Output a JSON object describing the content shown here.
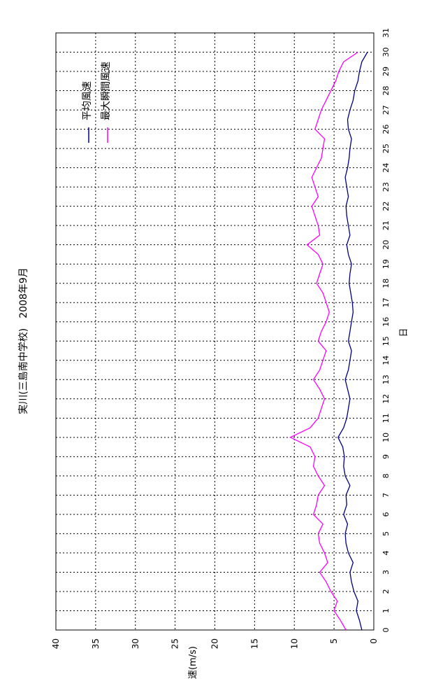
{
  "chart_data": {
    "type": "line",
    "title": "実川(三島南中学校)　2008年9月",
    "xlabel": "日",
    "ylabel": "風速(m/s)",
    "xlim": [
      0,
      31
    ],
    "ylim": [
      0,
      40
    ],
    "x_ticks": [
      "0",
      "1",
      "2",
      "3",
      "4",
      "5",
      "6",
      "7",
      "8",
      "9",
      "10",
      "11",
      "12",
      "13",
      "14",
      "15",
      "16",
      "17",
      "18",
      "19",
      "20",
      "21",
      "22",
      "23",
      "24",
      "25",
      "26",
      "27",
      "28",
      "29",
      "30",
      "31"
    ],
    "y_ticks": [
      "0",
      "5",
      "10",
      "15",
      "20",
      "25",
      "30",
      "35",
      "40"
    ],
    "grid": true,
    "orientation": "rotated 90 degrees counter-clockwise",
    "legend_position": "top-right",
    "series": [
      {
        "name": "平均風速",
        "color": "#000080",
        "x": [
          0,
          0.5,
          1,
          1.5,
          2,
          2.5,
          3,
          3.5,
          4,
          4.5,
          5,
          5.5,
          6,
          6.5,
          7,
          7.5,
          8,
          8.5,
          9,
          9.5,
          10,
          10.5,
          11,
          11.5,
          12,
          12.5,
          13,
          13.5,
          14,
          14.5,
          15,
          15.5,
          16,
          16.5,
          17,
          17.5,
          18,
          18.5,
          19,
          19.5,
          20,
          20.5,
          21,
          21.5,
          22,
          22.5,
          23,
          23.5,
          24,
          24.5,
          25,
          25.5,
          26,
          26.5,
          27,
          27.5,
          28,
          28.5,
          29,
          29.5,
          30
        ],
        "values": [
          1.5,
          1.8,
          2.2,
          2.0,
          2.5,
          2.8,
          3.0,
          2.6,
          3.2,
          3.5,
          3.6,
          3.3,
          3.8,
          3.4,
          3.5,
          3.0,
          3.6,
          3.8,
          3.7,
          3.9,
          4.5,
          3.8,
          3.4,
          3.2,
          3.0,
          3.3,
          3.6,
          3.2,
          3.0,
          2.8,
          3.2,
          3.0,
          2.8,
          2.6,
          2.7,
          2.9,
          3.1,
          3.0,
          2.8,
          3.2,
          3.4,
          3.0,
          3.2,
          3.4,
          3.5,
          3.2,
          3.4,
          3.6,
          3.3,
          3.1,
          3.0,
          2.8,
          3.2,
          3.3,
          3.0,
          2.6,
          2.4,
          2.0,
          1.8,
          1.5,
          0.8
        ]
      },
      {
        "name": "最大瞬間風速",
        "color": "#ff00ff",
        "x": [
          0,
          0.5,
          1,
          1.5,
          2,
          2.5,
          3,
          3.5,
          4,
          4.5,
          5,
          5.5,
          6,
          6.5,
          7,
          7.5,
          8,
          8.5,
          9,
          9.5,
          10,
          10.5,
          11,
          11.5,
          12,
          12.5,
          13,
          13.5,
          14,
          14.5,
          15,
          15.5,
          16,
          16.5,
          17,
          17.5,
          18,
          18.5,
          19,
          19.5,
          20,
          20.5,
          21,
          21.5,
          22,
          22.5,
          23,
          23.5,
          24,
          24.5,
          25,
          25.5,
          26,
          26.5,
          27,
          27.5,
          28,
          28.5,
          29,
          29.5,
          30
        ],
        "values": [
          3.5,
          4.2,
          5.0,
          4.6,
          5.4,
          6.0,
          6.8,
          5.8,
          6.2,
          6.8,
          7.0,
          6.4,
          7.6,
          7.2,
          7.0,
          6.2,
          7.0,
          7.6,
          7.4,
          8.0,
          10.5,
          8.0,
          7.0,
          6.6,
          6.2,
          6.8,
          7.6,
          6.8,
          6.4,
          6.0,
          7.0,
          6.6,
          6.0,
          5.6,
          6.0,
          6.4,
          7.2,
          6.8,
          6.4,
          7.0,
          8.4,
          6.8,
          7.0,
          7.4,
          7.8,
          7.0,
          7.4,
          7.8,
          7.2,
          6.6,
          6.4,
          6.2,
          7.4,
          7.0,
          6.6,
          6.0,
          5.4,
          4.8,
          4.4,
          3.8,
          2.0
        ]
      }
    ]
  }
}
